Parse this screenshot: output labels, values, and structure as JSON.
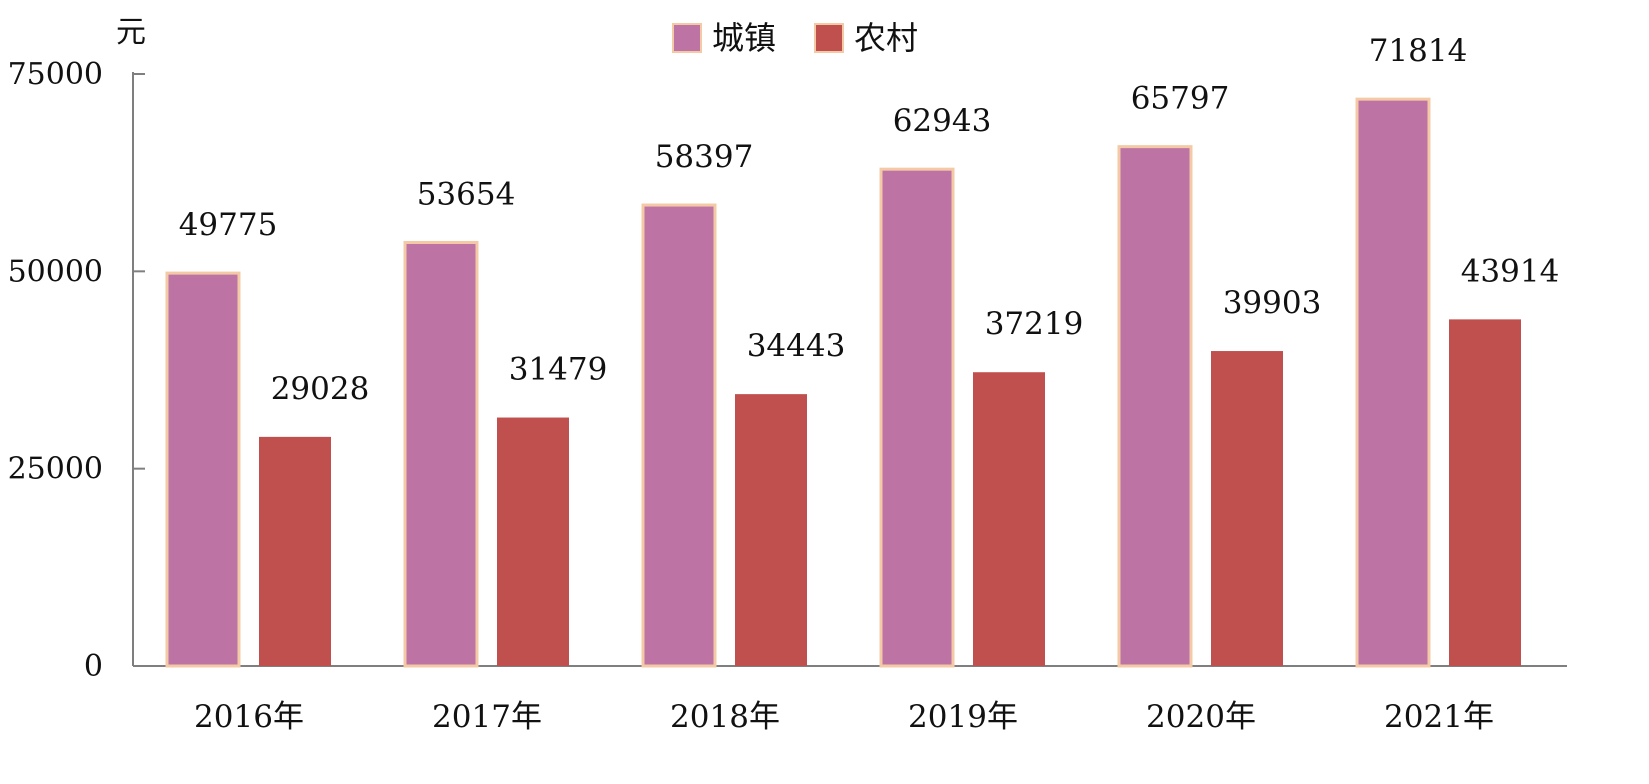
{
  "chart_data": {
    "type": "bar",
    "title": "",
    "xlabel": "",
    "ylabel": "元",
    "ylim": [
      0,
      75000
    ],
    "yticks": [
      0,
      25000,
      50000,
      75000
    ],
    "categories": [
      "2016年",
      "2017年",
      "2018年",
      "2019年",
      "2020年",
      "2021年"
    ],
    "series": [
      {
        "name": "城镇",
        "color": "#bd74a4",
        "values": [
          49775,
          53654,
          58397,
          62943,
          65797,
          71814
        ]
      },
      {
        "name": "农村",
        "color": "#c0504d",
        "values": [
          29028,
          31479,
          34443,
          37219,
          39903,
          43914
        ]
      }
    ],
    "legend_position": "top-center",
    "grid": false
  }
}
